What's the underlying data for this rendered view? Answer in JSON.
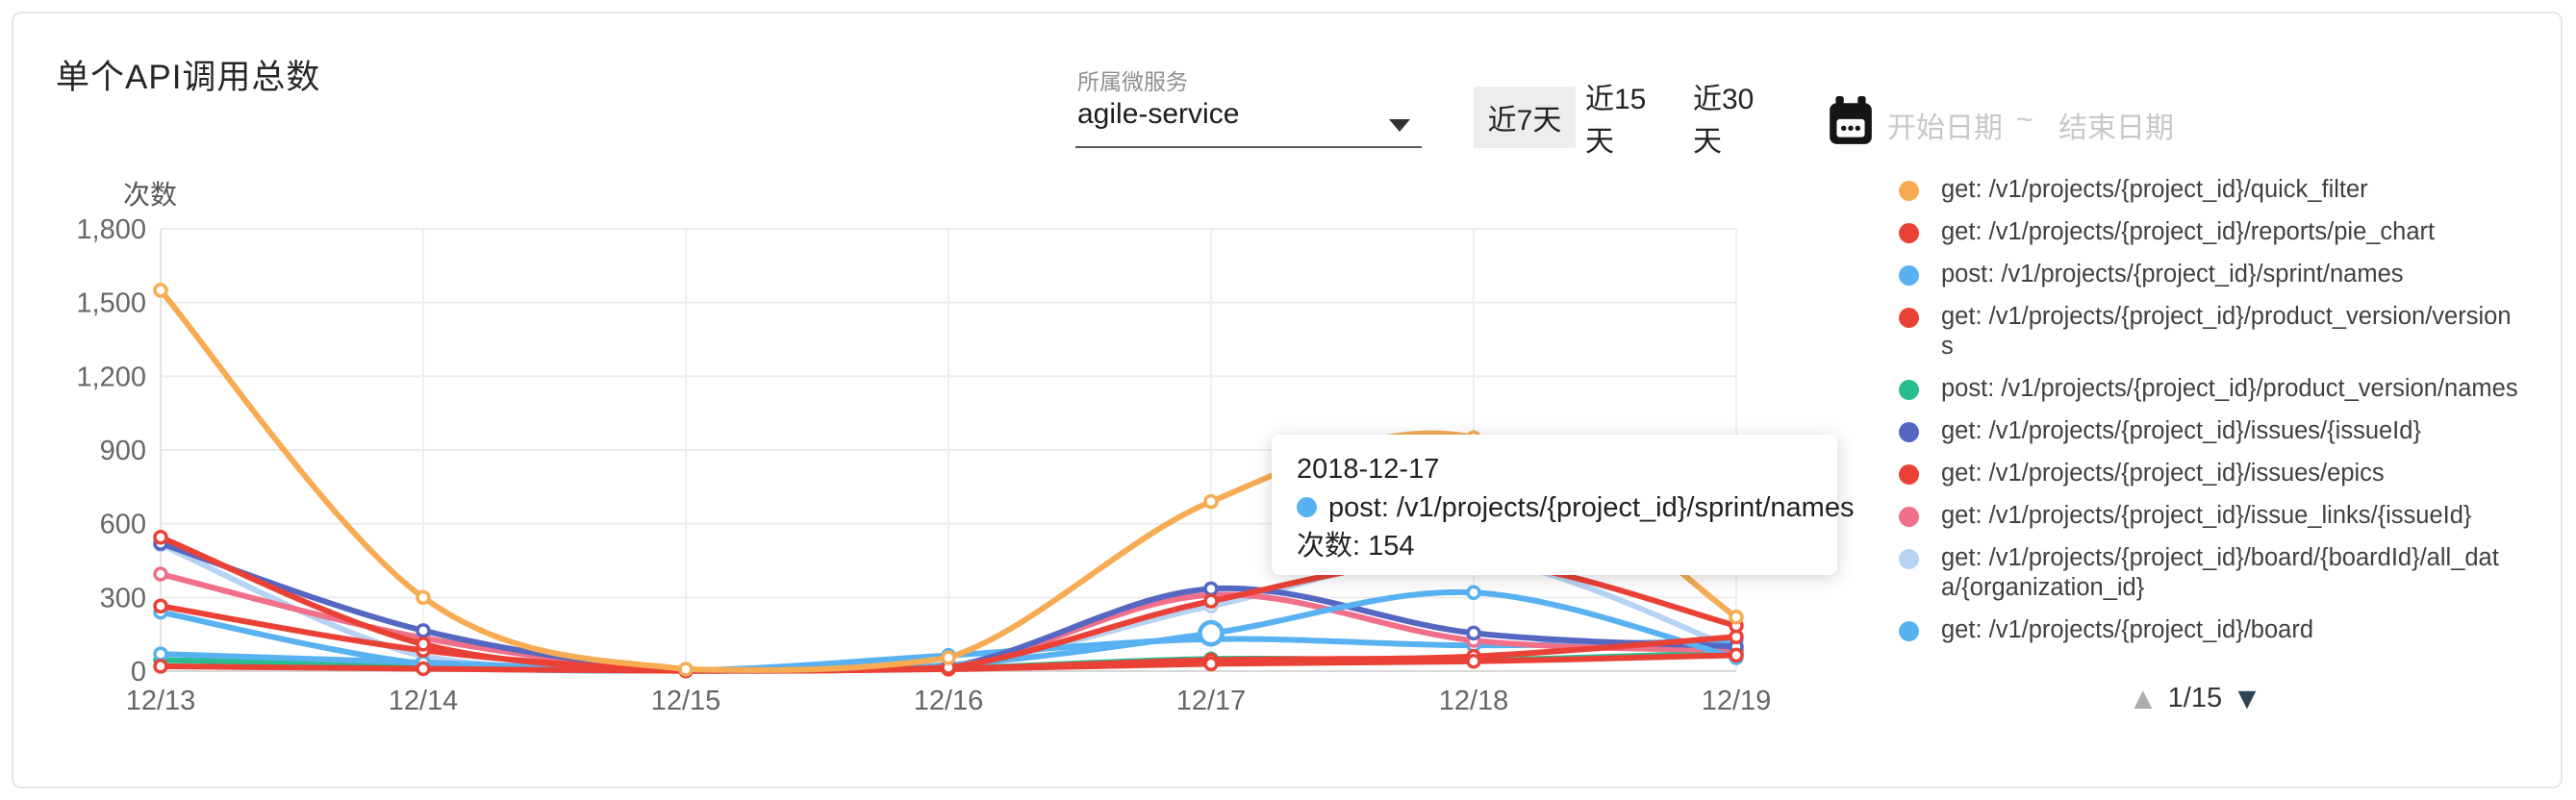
{
  "card": {
    "title": "单个API调用总数"
  },
  "controls": {
    "service_select": {
      "label": "所属微服务",
      "value": "agile-service"
    },
    "range_buttons": [
      {
        "label": "近7天",
        "selected": true
      },
      {
        "label": "近15天",
        "selected": false
      },
      {
        "label": "近30天",
        "selected": false
      }
    ],
    "date_range": {
      "start_placeholder": "开始日期",
      "separator": "~",
      "end_placeholder": "结束日期"
    }
  },
  "chart_data": {
    "type": "line",
    "title": "单个API调用总数",
    "y_name": "次数",
    "xlabel": "",
    "ylabel": "次数",
    "ylim": [
      0,
      1800
    ],
    "y_step": 300,
    "grid": true,
    "smooth": true,
    "legend_position": "right",
    "categories": [
      "12/13",
      "12/14",
      "12/15",
      "12/16",
      "12/17",
      "12/18",
      "12/19"
    ],
    "series": [
      {
        "name": "get: /v1/projects/{project_id}/quick_filter",
        "color": "#F7AC54",
        "values": [
          1550,
          300,
          8,
          55,
          690,
          950,
          220
        ]
      },
      {
        "name": "get: /v1/projects/{project_id}/reports/pie_chart",
        "color": "#EA4136",
        "values": [
          545,
          110,
          5,
          15,
          285,
          450,
          185
        ]
      },
      {
        "name": "post: /v1/projects/{project_id}/sprint/names",
        "color": "#58B1F1",
        "values": [
          70,
          35,
          2,
          25,
          154,
          320,
          55
        ]
      },
      {
        "name": "get: /v1/projects/{project_id}/product_version/versions",
        "color": "#EA4136",
        "values": [
          265,
          85,
          3,
          10,
          45,
          60,
          140
        ]
      },
      {
        "name": "post: /v1/projects/{project_id}/product_version/names",
        "color": "#29BD92",
        "values": [
          45,
          25,
          2,
          12,
          50,
          45,
          75
        ]
      },
      {
        "name": "get: /v1/projects/{project_id}/issues/{issueId}",
        "color": "#5667C2",
        "values": [
          520,
          165,
          5,
          18,
          335,
          155,
          100
        ]
      },
      {
        "name": "get: /v1/projects/{project_id}/issues/epics",
        "color": "#EA4136",
        "values": [
          20,
          10,
          1,
          8,
          30,
          40,
          65
        ]
      },
      {
        "name": "get: /v1/projects/{project_id}/issue_links/{issueId}",
        "color": "#F06F89",
        "values": [
          395,
          135,
          3,
          14,
          310,
          125,
          85
        ]
      },
      {
        "name": "get: /v1/projects/{project_id}/board/{boardId}/all_data/{organization_id}",
        "color": "#B7D3F3",
        "values": [
          515,
          60,
          2,
          15,
          265,
          460,
          90
        ]
      },
      {
        "name": "get: /v1/projects/{project_id}/board",
        "color": "#58B1F1",
        "values": [
          240,
          30,
          3,
          64,
          130,
          105,
          125
        ]
      }
    ],
    "z_order": [
      8,
      4,
      9,
      7,
      5,
      2,
      3,
      6,
      1,
      0
    ],
    "highlight": {
      "series_index": 2,
      "category_index": 4,
      "value": 154
    }
  },
  "tooltip": {
    "date": "2018-12-17",
    "series": "post: /v1/projects/{project_id}/sprint/names",
    "dot_color": "#58B1F1",
    "metric_line": "次数: 154"
  },
  "legend": {
    "items": [
      {
        "label": "get: /v1/projects/{project_id}/quick_filter",
        "color": "#F7AC54"
      },
      {
        "label": "get: /v1/projects/{project_id}/reports/pie_chart",
        "color": "#EA4136"
      },
      {
        "label": "post: /v1/projects/{project_id}/sprint/names",
        "color": "#58B1F1"
      },
      {
        "label": "get: /v1/projects/{project_id}/product_version/versions",
        "color": "#EA4136"
      },
      {
        "label": "post: /v1/projects/{project_id}/product_version/names",
        "color": "#29BD92"
      },
      {
        "label": "get: /v1/projects/{project_id}/issues/{issueId}",
        "color": "#5667C2"
      },
      {
        "label": "get: /v1/projects/{project_id}/issues/epics",
        "color": "#EA4136"
      },
      {
        "label": "get: /v1/projects/{project_id}/issue_links/{issueId}",
        "color": "#F06F89"
      },
      {
        "label": "get: /v1/projects/{project_id}/board/{boardId}/all_data/{organization_id}",
        "color": "#B7D3F3"
      },
      {
        "label": "get: /v1/projects/{project_id}/board",
        "color": "#58B1F1"
      }
    ],
    "pagination": {
      "text": "1/15",
      "up_icon": "page-up",
      "down_icon": "page-down"
    }
  }
}
